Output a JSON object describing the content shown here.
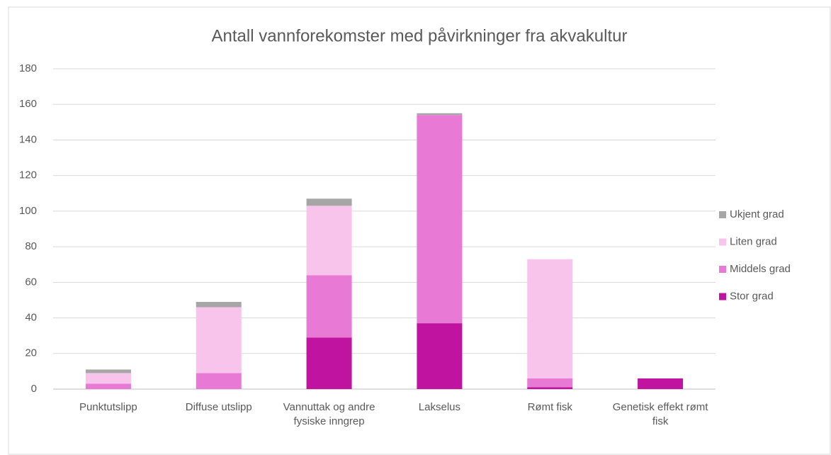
{
  "chart_data": {
    "type": "stacked_bar",
    "title": "Antall vannforekomster med påvirkninger fra akvakultur",
    "categories": [
      "Punktutslipp",
      "Diffuse utslipp",
      "Vannuttak og andre fysiske inngrep",
      "Lakselus",
      "Rømt fisk",
      "Genetisk effekt rømt fisk"
    ],
    "series": [
      {
        "name": "Stor grad",
        "color": "#c0139f",
        "values": [
          0,
          0,
          29,
          37,
          1,
          6
        ]
      },
      {
        "name": "Middels grad",
        "color": "#e879d4",
        "values": [
          3,
          9,
          35,
          117,
          5,
          0
        ]
      },
      {
        "name": "Liten grad",
        "color": "#f9c4ec",
        "values": [
          6,
          37,
          39,
          0,
          67,
          0
        ]
      },
      {
        "name": "Ukjent grad",
        "color": "#a6a6a6",
        "values": [
          2,
          3,
          4,
          1,
          0,
          0
        ]
      }
    ],
    "ylim": [
      0,
      180
    ],
    "yticks": [
      0,
      20,
      40,
      60,
      80,
      100,
      120,
      140,
      160,
      180
    ],
    "grid": true,
    "legend": "right"
  }
}
